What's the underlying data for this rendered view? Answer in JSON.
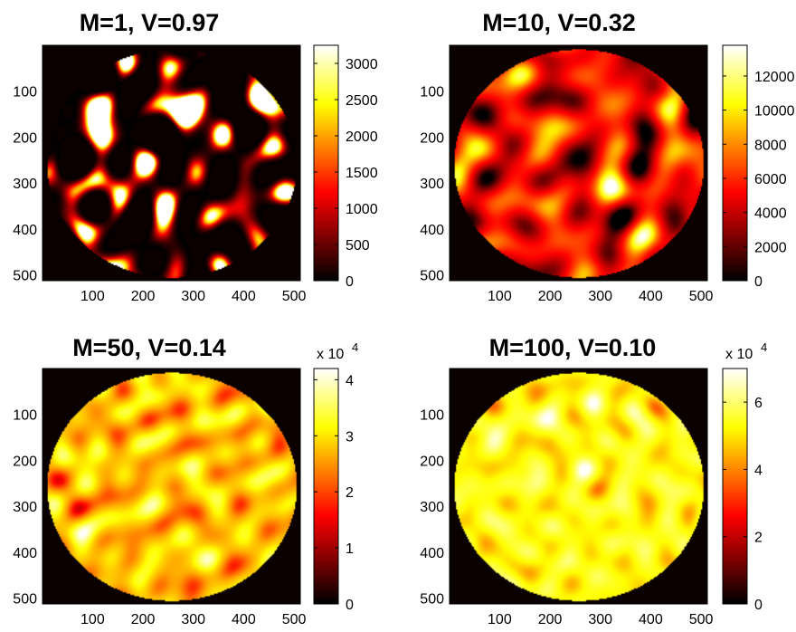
{
  "chart_data": [
    {
      "type": "heatmap",
      "title": "M=1, V=0.97",
      "colormap": "hot",
      "x_ticks": [
        "100",
        "200",
        "300",
        "400",
        "500"
      ],
      "y_ticks": [
        "100",
        "200",
        "300",
        "400",
        "500"
      ],
      "x_range": [
        1,
        512
      ],
      "y_range": [
        1,
        512
      ],
      "y_direction": "reversed",
      "colorbar": {
        "ticks": [
          "0",
          "500",
          "1000",
          "1500",
          "2000",
          "2500",
          "3000"
        ],
        "tick_values": [
          0,
          500,
          1000,
          1500,
          2000,
          2500,
          3000
        ],
        "min": 0,
        "max": 3250,
        "exponent_label": ""
      },
      "pattern": {
        "circle_center": [
          256,
          256
        ],
        "circle_radius": 248,
        "relative_mean": 0.12,
        "relative_contrast": 0.9,
        "speckle_scale": 1.0,
        "seed": 1
      }
    },
    {
      "type": "heatmap",
      "title": "M=10, V=0.32",
      "colormap": "hot",
      "x_ticks": [
        "100",
        "200",
        "300",
        "400",
        "500"
      ],
      "y_ticks": [
        "100",
        "200",
        "300",
        "400",
        "500"
      ],
      "x_range": [
        1,
        512
      ],
      "y_range": [
        1,
        512
      ],
      "y_direction": "reversed",
      "colorbar": {
        "ticks": [
          "0",
          "2000",
          "4000",
          "6000",
          "8000",
          "10000",
          "12000"
        ],
        "tick_values": [
          0,
          2000,
          4000,
          6000,
          8000,
          10000,
          12000
        ],
        "min": 0,
        "max": 13800,
        "exponent_label": ""
      },
      "pattern": {
        "circle_center": [
          256,
          256
        ],
        "circle_radius": 248,
        "relative_mean": 0.38,
        "relative_contrast": 0.38,
        "speckle_scale": 1.0,
        "seed": 2
      }
    },
    {
      "type": "heatmap",
      "title": "M=50, V=0.14",
      "colormap": "hot",
      "x_ticks": [
        "100",
        "200",
        "300",
        "400",
        "500"
      ],
      "y_ticks": [
        "100",
        "200",
        "300",
        "400",
        "500"
      ],
      "x_range": [
        1,
        512
      ],
      "y_range": [
        1,
        512
      ],
      "y_direction": "reversed",
      "colorbar": {
        "ticks": [
          "0",
          "1",
          "2",
          "3",
          "4"
        ],
        "tick_values": [
          0,
          1,
          2,
          3,
          4
        ],
        "min": 0,
        "max": 4.2,
        "exponent_label": "x 10",
        "exponent_power": "4"
      },
      "pattern": {
        "circle_center": [
          256,
          256
        ],
        "circle_radius": 248,
        "relative_mean": 0.66,
        "relative_contrast": 0.22,
        "speckle_scale": 1.2,
        "seed": 3
      }
    },
    {
      "type": "heatmap",
      "title": "M=100, V=0.10",
      "colormap": "hot",
      "x_ticks": [
        "100",
        "200",
        "300",
        "400",
        "500"
      ],
      "y_ticks": [
        "100",
        "200",
        "300",
        "400",
        "500"
      ],
      "x_range": [
        1,
        512
      ],
      "y_range": [
        1,
        512
      ],
      "y_direction": "reversed",
      "colorbar": {
        "ticks": [
          "0",
          "2",
          "4",
          "6"
        ],
        "tick_values": [
          0,
          2,
          4,
          6
        ],
        "min": 0,
        "max": 7.0,
        "exponent_label": "x 10",
        "exponent_power": "4"
      },
      "pattern": {
        "circle_center": [
          256,
          256
        ],
        "circle_radius": 248,
        "relative_mean": 0.76,
        "relative_contrast": 0.16,
        "speckle_scale": 1.3,
        "seed": 4
      }
    }
  ],
  "colors": {
    "background": "#ffffff",
    "image_background": "#0a0000",
    "axis": "#000000"
  }
}
